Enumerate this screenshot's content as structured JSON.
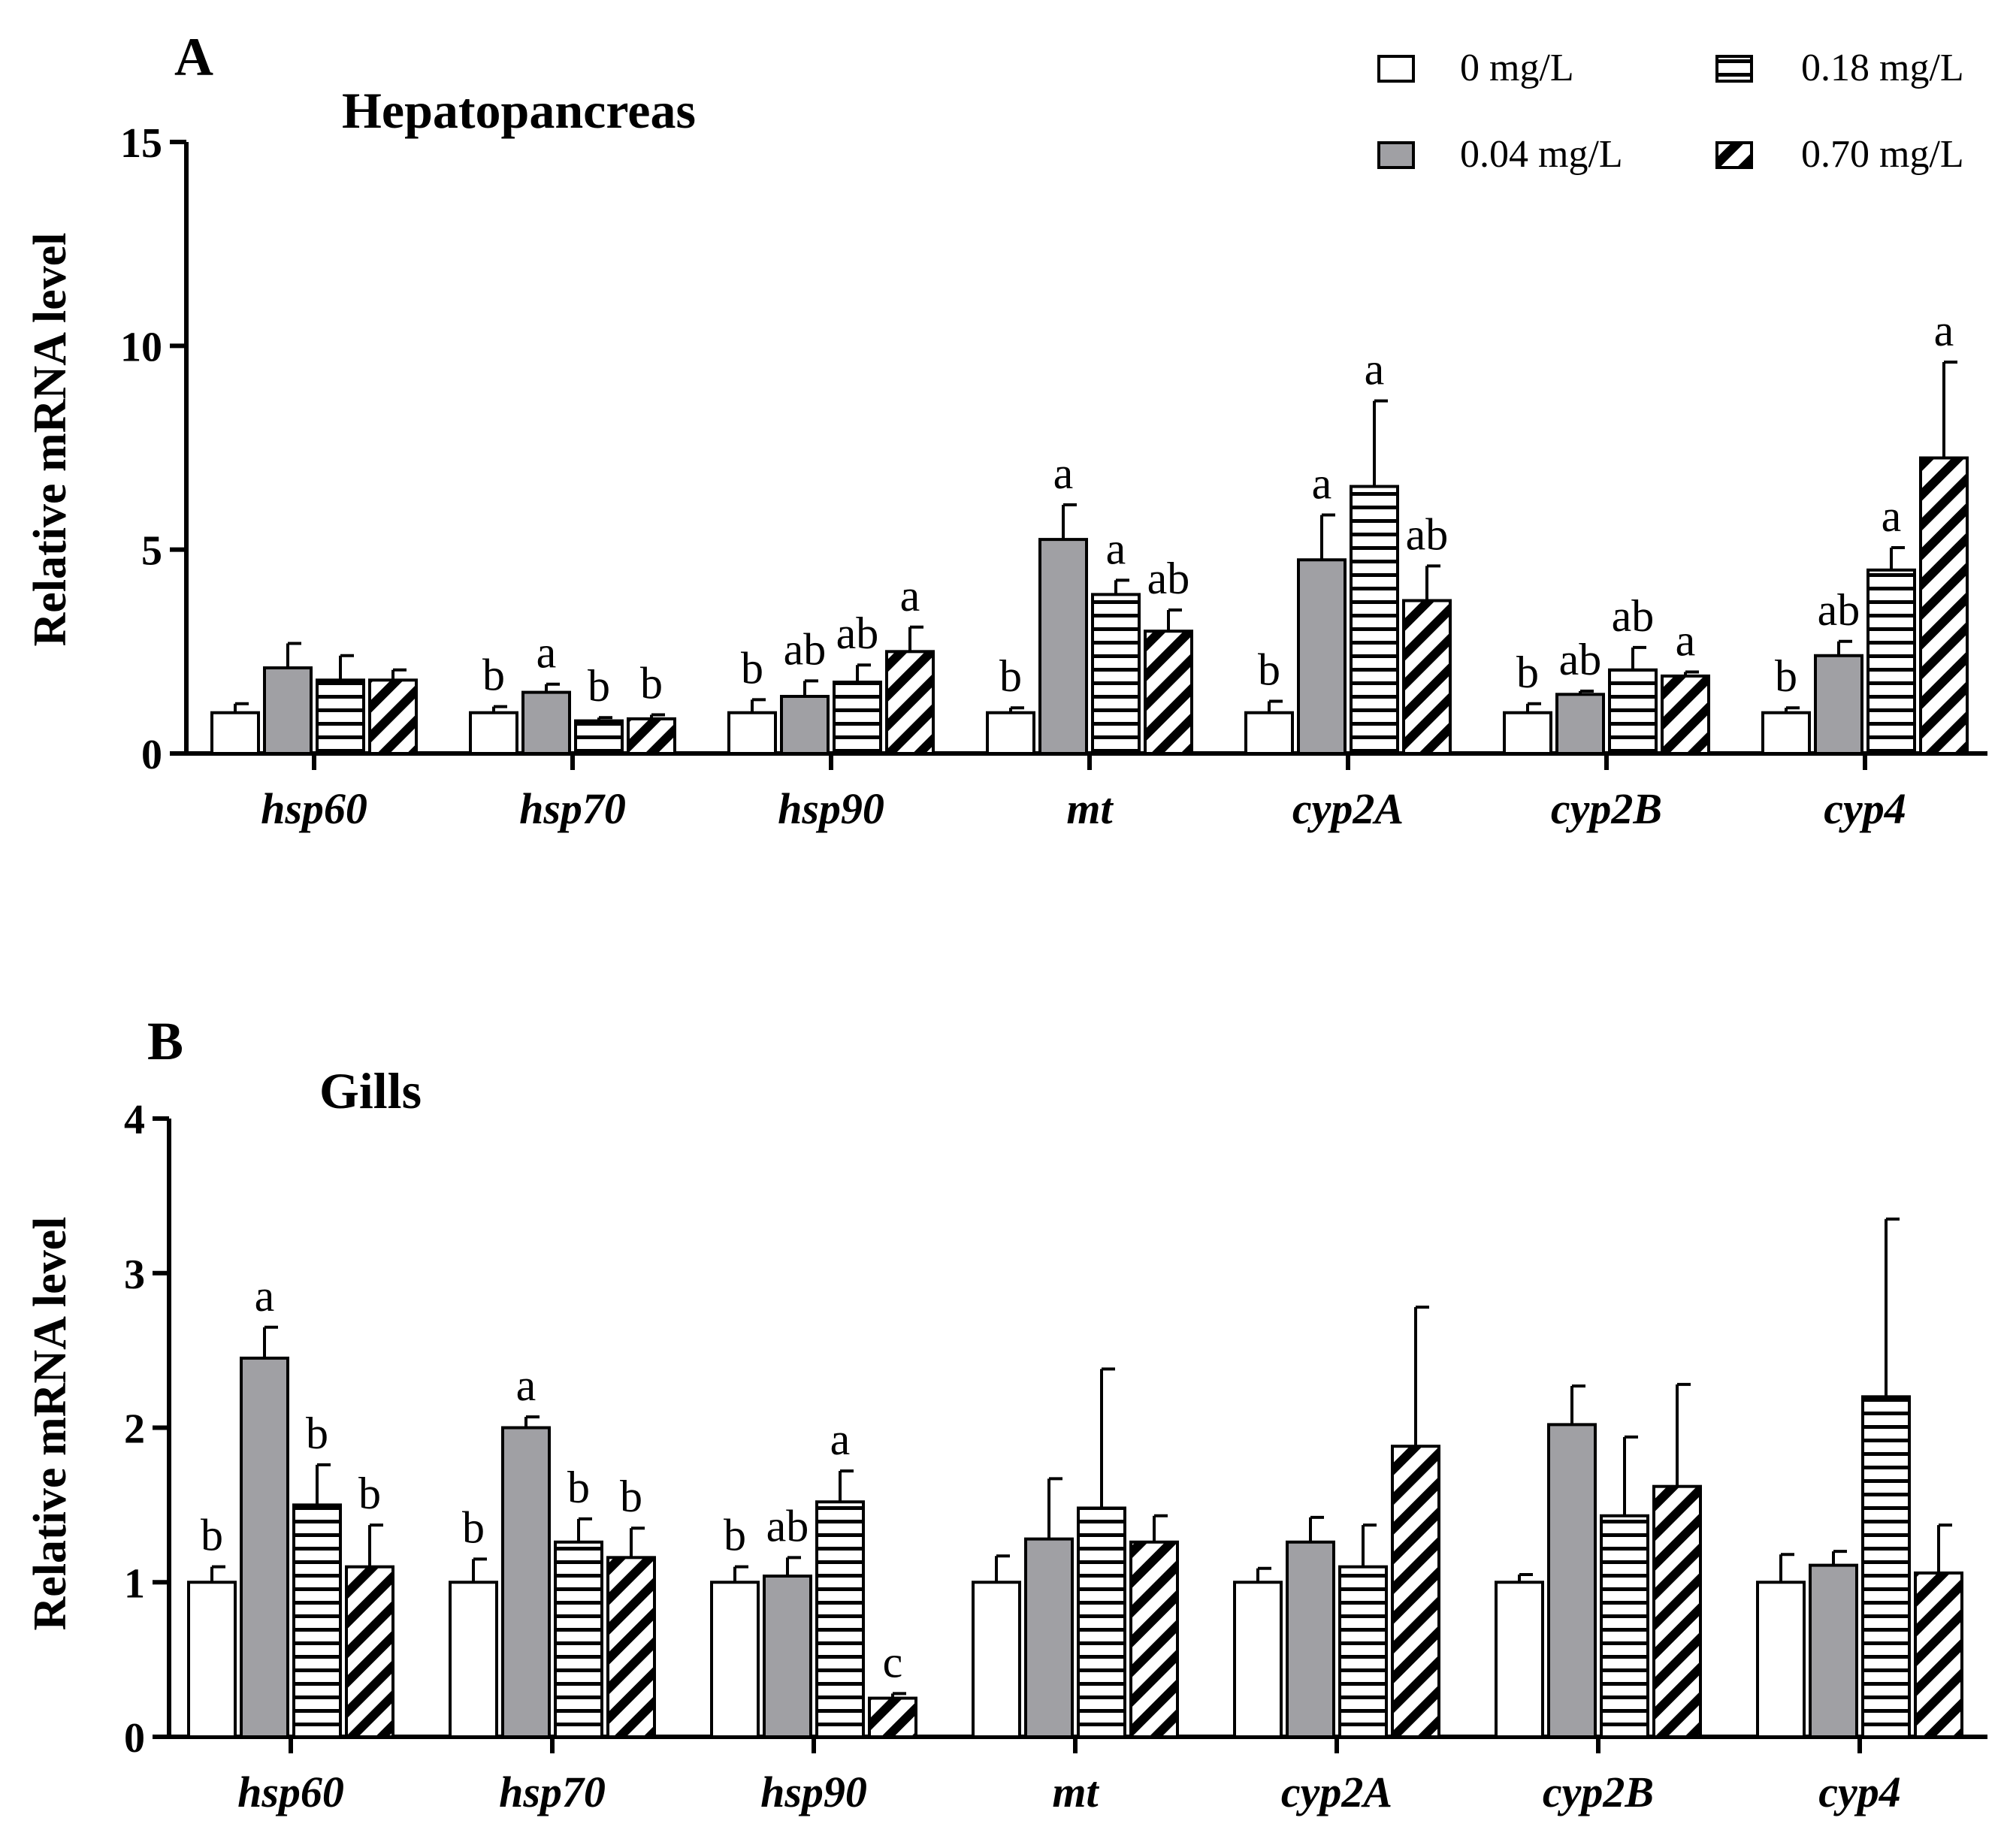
{
  "legend": {
    "items": [
      {
        "label": "0 mg/L",
        "fill": "white"
      },
      {
        "label": "0.04 mg/L",
        "fill": "gray"
      },
      {
        "label": "0.18 mg/L",
        "fill": "hlines"
      },
      {
        "label": "0.70 mg/L",
        "fill": "diag"
      }
    ]
  },
  "colors": {
    "gray_fill": "#a0a0a4",
    "stroke": "#000000",
    "background": "#ffffff"
  },
  "chart_data": [
    {
      "type": "bar",
      "panel_label": "A",
      "title": "Hepatopancreas",
      "xlabel": "",
      "ylabel": "Relative mRNA level",
      "ylim": [
        0,
        15
      ],
      "yticks": [
        0,
        5,
        10,
        15
      ],
      "categories": [
        "hsp60",
        "hsp70",
        "hsp90",
        "mt",
        "cyp2A",
        "cyp2B",
        "cyp4"
      ],
      "series": [
        {
          "name": "0 mg/L",
          "values": [
            1.0,
            1.0,
            1.0,
            1.0,
            1.0,
            1.0,
            1.0
          ],
          "errors": [
            0.22,
            0.15,
            0.32,
            0.12,
            0.28,
            0.22,
            0.12
          ],
          "labels": [
            "",
            "b",
            "b",
            "b",
            "b",
            "b",
            "b"
          ]
        },
        {
          "name": "0.04 mg/L",
          "values": [
            2.1,
            1.5,
            1.4,
            5.25,
            4.75,
            1.45,
            2.4
          ],
          "errors": [
            0.6,
            0.2,
            0.38,
            0.85,
            1.1,
            0.08,
            0.35
          ],
          "labels": [
            "",
            "a",
            "ab",
            "a",
            "a",
            "ab",
            "ab"
          ]
        },
        {
          "name": "0.18 mg/L",
          "values": [
            1.8,
            0.8,
            1.75,
            3.9,
            6.55,
            2.05,
            4.5
          ],
          "errors": [
            0.6,
            0.08,
            0.42,
            0.35,
            2.1,
            0.55,
            0.55
          ],
          "labels": [
            "",
            "b",
            "ab",
            "a",
            "a",
            "ab",
            "a"
          ]
        },
        {
          "name": "0.70 mg/L",
          "values": [
            1.8,
            0.85,
            2.5,
            3.0,
            3.75,
            1.9,
            7.25
          ],
          "errors": [
            0.25,
            0.1,
            0.6,
            0.52,
            0.85,
            0.1,
            2.35
          ],
          "labels": [
            "",
            "b",
            "a",
            "ab",
            "ab",
            "a",
            "a"
          ]
        }
      ]
    },
    {
      "type": "bar",
      "panel_label": "B",
      "title": "Gills",
      "xlabel": "",
      "ylabel": "Relative mRNA level",
      "ylim": [
        0,
        4
      ],
      "yticks": [
        0,
        1,
        2,
        3,
        4
      ],
      "categories": [
        "hsp60",
        "hsp70",
        "hsp90",
        "mt",
        "cyp2A",
        "cyp2B",
        "cyp4"
      ],
      "series": [
        {
          "name": "0 mg/L",
          "values": [
            1.0,
            1.0,
            1.0,
            1.0,
            1.0,
            1.0,
            1.0
          ],
          "errors": [
            0.1,
            0.15,
            0.1,
            0.17,
            0.09,
            0.05,
            0.18
          ],
          "labels": [
            "b",
            "b",
            "b",
            "",
            "",
            "",
            ""
          ]
        },
        {
          "name": "0.04 mg/L",
          "values": [
            2.45,
            2.0,
            1.04,
            1.28,
            1.26,
            2.02,
            1.11
          ],
          "errors": [
            0.2,
            0.07,
            0.12,
            0.39,
            0.16,
            0.25,
            0.09
          ],
          "labels": [
            "a",
            "a",
            "ab",
            "",
            "",
            "",
            ""
          ]
        },
        {
          "name": "0.18 mg/L",
          "values": [
            1.5,
            1.26,
            1.52,
            1.48,
            1.1,
            1.43,
            2.2
          ],
          "errors": [
            0.26,
            0.15,
            0.2,
            0.9,
            0.27,
            0.51,
            1.15
          ],
          "labels": [
            "b",
            "b",
            "a",
            "",
            "",
            "",
            ""
          ]
        },
        {
          "name": "0.70 mg/L",
          "values": [
            1.1,
            1.16,
            0.25,
            1.26,
            1.88,
            1.62,
            1.06
          ],
          "errors": [
            0.27,
            0.19,
            0.03,
            0.17,
            0.9,
            0.66,
            0.31
          ],
          "labels": [
            "b",
            "b",
            "c",
            "",
            "",
            "",
            ""
          ]
        }
      ]
    }
  ]
}
